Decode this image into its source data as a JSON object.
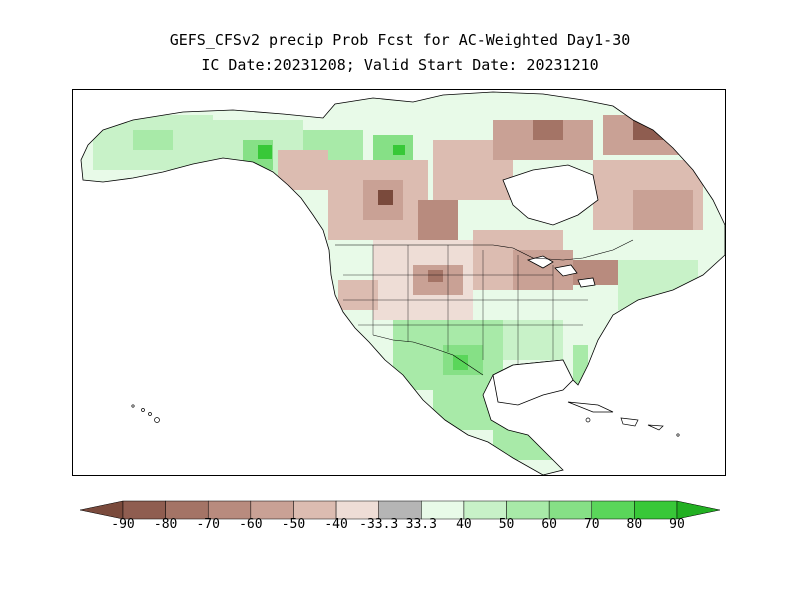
{
  "title": {
    "line1": "GEFS_CFSv2 precip Prob Fcst for AC-Weighted Day1-30",
    "line2": "IC Date:20231208; Valid Start Date: 20231210"
  },
  "legend": {
    "labels": [
      "-90",
      "-80",
      "-70",
      "-60",
      "-50",
      "-40",
      "-33.3",
      "33.3",
      "40",
      "50",
      "60",
      "70",
      "80",
      "90"
    ],
    "colors": {
      "below_extreme": "#7a4a3c",
      "below_90": "#8f5d50",
      "below_80": "#a47466",
      "below_70": "#b88b7e",
      "below_60": "#c9a195",
      "below_50": "#dcbcb1",
      "below_40": "#eeddd6",
      "neutral": "#b5b5b5",
      "above_33": "#e8fae8",
      "above_40": "#c8f2c8",
      "above_50": "#a8eaa8",
      "above_60": "#86e086",
      "above_70": "#5ad65a",
      "above_80": "#38c838",
      "above_extreme": "#22b022"
    }
  },
  "map": {
    "region": "North America",
    "colors": {
      "coast": "#000000",
      "ocean": "#ffffff"
    }
  }
}
